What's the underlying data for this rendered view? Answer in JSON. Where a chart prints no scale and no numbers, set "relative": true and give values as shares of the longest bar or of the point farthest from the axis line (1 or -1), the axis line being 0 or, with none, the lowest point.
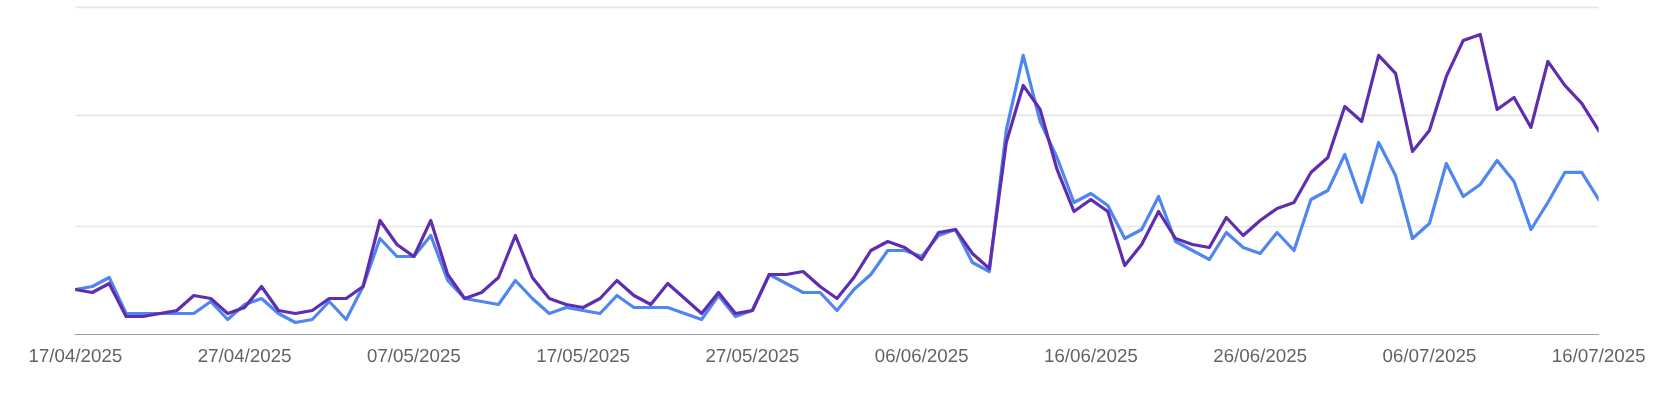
{
  "chart_data": {
    "type": "line",
    "relative": true,
    "legend": false,
    "ref_lines": [
      {
        "axis": "y",
        "value": 0.36,
        "color": "#e6e6e6"
      },
      {
        "axis": "y",
        "value": 0.73,
        "color": "#e6e6e6"
      },
      {
        "axis": "y",
        "value": 1.09,
        "color": "#e6e6e6"
      }
    ],
    "marker": "none",
    "line_style": "solid",
    "x": [
      "2025-04-17",
      "2025-04-18",
      "2025-04-19",
      "2025-04-20",
      "2025-04-21",
      "2025-04-22",
      "2025-04-23",
      "2025-04-24",
      "2025-04-25",
      "2025-04-26",
      "2025-04-27",
      "2025-04-28",
      "2025-04-29",
      "2025-04-30",
      "2025-05-01",
      "2025-05-02",
      "2025-05-03",
      "2025-05-04",
      "2025-05-05",
      "2025-05-06",
      "2025-05-07",
      "2025-05-08",
      "2025-05-09",
      "2025-05-10",
      "2025-05-11",
      "2025-05-12",
      "2025-05-13",
      "2025-05-14",
      "2025-05-15",
      "2025-05-16",
      "2025-05-17",
      "2025-05-18",
      "2025-05-19",
      "2025-05-20",
      "2025-05-21",
      "2025-05-22",
      "2025-05-23",
      "2025-05-24",
      "2025-05-25",
      "2025-05-26",
      "2025-05-27",
      "2025-05-28",
      "2025-05-29",
      "2025-05-30",
      "2025-05-31",
      "2025-06-01",
      "2025-06-02",
      "2025-06-03",
      "2025-06-04",
      "2025-06-05",
      "2025-06-06",
      "2025-06-07",
      "2025-06-08",
      "2025-06-09",
      "2025-06-10",
      "2025-06-11",
      "2025-06-12",
      "2025-06-13",
      "2025-06-14",
      "2025-06-15",
      "2025-06-16",
      "2025-06-17",
      "2025-06-18",
      "2025-06-19",
      "2025-06-20",
      "2025-06-21",
      "2025-06-22",
      "2025-06-23",
      "2025-06-24",
      "2025-06-25",
      "2025-06-26",
      "2025-06-27",
      "2025-06-28",
      "2025-06-29",
      "2025-06-30",
      "2025-07-01",
      "2025-07-02",
      "2025-07-03",
      "2025-07-04",
      "2025-07-05",
      "2025-07-06",
      "2025-07-07",
      "2025-07-08",
      "2025-07-09",
      "2025-07-10",
      "2025-07-11",
      "2025-07-12",
      "2025-07-13",
      "2025-07-14",
      "2025-07-15",
      "2025-07-16"
    ],
    "xlim": [
      "2025-04-17",
      "2025-07-16"
    ],
    "xticks": [
      {
        "value": "2025-04-17",
        "label": "17/04/2025"
      },
      {
        "value": "2025-04-27",
        "label": "27/04/2025"
      },
      {
        "value": "2025-05-07",
        "label": "07/05/2025"
      },
      {
        "value": "2025-05-17",
        "label": "17/05/2025"
      },
      {
        "value": "2025-05-27",
        "label": "27/05/2025"
      },
      {
        "value": "2025-06-06",
        "label": "06/06/2025"
      },
      {
        "value": "2025-06-16",
        "label": "16/06/2025"
      },
      {
        "value": "2025-06-26",
        "label": "26/06/2025"
      },
      {
        "value": "2025-07-06",
        "label": "06/07/2025"
      },
      {
        "value": "2025-07-16",
        "label": "16/07/2025"
      }
    ],
    "series": [
      {
        "color": "#4f86ef",
        "values": [
          0.15,
          0.16,
          0.19,
          0.07,
          0.07,
          0.07,
          0.07,
          0.07,
          0.11,
          0.05,
          0.1,
          0.12,
          0.07,
          0.04,
          0.05,
          0.11,
          0.05,
          0.16,
          0.32,
          0.26,
          0.26,
          0.33,
          0.18,
          0.12,
          0.11,
          0.1,
          0.18,
          0.12,
          0.07,
          0.09,
          0.08,
          0.07,
          0.13,
          0.09,
          0.09,
          0.09,
          0.07,
          0.05,
          0.13,
          0.06,
          0.08,
          0.2,
          0.17,
          0.14,
          0.14,
          0.08,
          0.15,
          0.2,
          0.28,
          0.28,
          0.26,
          0.33,
          0.35,
          0.24,
          0.21,
          0.68,
          0.93,
          0.71,
          0.59,
          0.44,
          0.47,
          0.43,
          0.32,
          0.35,
          0.46,
          0.31,
          0.28,
          0.25,
          0.34,
          0.29,
          0.27,
          0.34,
          0.28,
          0.45,
          0.48,
          0.6,
          0.44,
          0.64,
          0.53,
          0.32,
          0.37,
          0.57,
          0.46,
          0.5,
          0.58,
          0.51,
          0.35,
          0.44,
          0.54,
          0.54,
          0.45
        ]
      },
      {
        "color": "#5f2db0",
        "values": [
          0.15,
          0.14,
          0.17,
          0.06,
          0.06,
          0.07,
          0.08,
          0.13,
          0.12,
          0.07,
          0.09,
          0.16,
          0.08,
          0.07,
          0.08,
          0.12,
          0.12,
          0.16,
          0.38,
          0.3,
          0.26,
          0.38,
          0.2,
          0.12,
          0.14,
          0.19,
          0.33,
          0.19,
          0.12,
          0.1,
          0.09,
          0.12,
          0.18,
          0.13,
          0.1,
          0.17,
          0.12,
          0.07,
          0.14,
          0.07,
          0.08,
          0.2,
          0.2,
          0.21,
          0.16,
          0.12,
          0.19,
          0.28,
          0.31,
          0.29,
          0.25,
          0.34,
          0.35,
          0.27,
          0.22,
          0.64,
          0.83,
          0.75,
          0.55,
          0.41,
          0.45,
          0.41,
          0.23,
          0.3,
          0.41,
          0.32,
          0.3,
          0.29,
          0.39,
          0.33,
          0.38,
          0.42,
          0.44,
          0.54,
          0.59,
          0.76,
          0.71,
          0.93,
          0.87,
          0.61,
          0.68,
          0.86,
          0.98,
          1.0,
          0.75,
          0.79,
          0.69,
          0.91,
          0.83,
          0.77,
          0.68
        ]
      }
    ]
  }
}
